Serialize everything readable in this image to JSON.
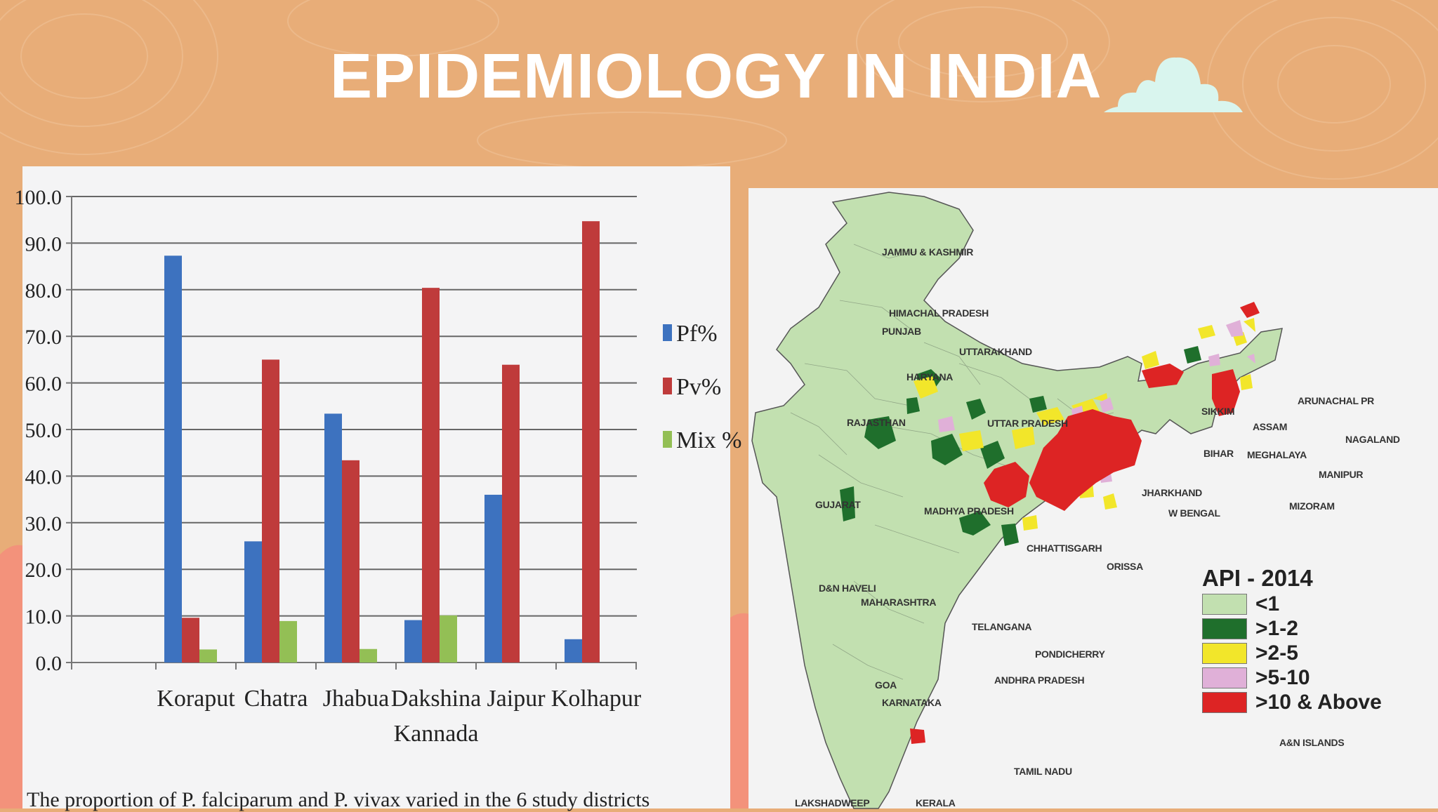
{
  "slide": {
    "title": "EPIDEMIOLOGY IN INDIA"
  },
  "colors": {
    "background": "#e8ad78",
    "salmon": "#f3927b",
    "cloud": "#d9f5ee",
    "pf": "#3d72bf",
    "pv": "#bf3b3b",
    "mix": "#93bf55"
  },
  "chart_data": {
    "type": "bar",
    "categories": [
      "Koraput",
      "Chatra",
      "Jhabua",
      "Dakshina\nKannada",
      "Jaipur",
      "Kolhapur"
    ],
    "series": [
      {
        "name": "Pf%",
        "values": [
          87.3,
          26.0,
          53.4,
          9.1,
          36.0,
          5.0
        ]
      },
      {
        "name": "Pv%",
        "values": [
          9.6,
          65.0,
          43.4,
          80.4,
          63.9,
          94.7
        ]
      },
      {
        "name": "Mix %",
        "values": [
          2.8,
          8.9,
          2.9,
          10.1,
          0,
          0
        ]
      }
    ],
    "ylim": [
      0,
      100
    ],
    "yticks": [
      "0.0",
      "10.0",
      "20.0",
      "30.0",
      "40.0",
      "50.0",
      "60.0",
      "70.0",
      "80.0",
      "90.0",
      "100.0"
    ],
    "grid": true,
    "legend_position": "right",
    "caption": "The proportion of P. falciparum and P. vivax varied in the 6 study districts"
  },
  "map": {
    "legend_title": "API - 2014",
    "legend": [
      {
        "label": "<1",
        "color": "#c2e0b0"
      },
      {
        "label": ">1-2",
        "color": "#1f6f2c"
      },
      {
        "label": ">2-5",
        "color": "#f2e62a"
      },
      {
        "label": ">5-10",
        "color": "#e0b0d8"
      },
      {
        "label": ">10 & Above",
        "color": "#dd2424"
      }
    ],
    "labels": [
      "JAMMU & KASHMIR",
      "HIMACHAL PRADESH",
      "PUNJAB",
      "UTTARAKHAND",
      "HARYANA",
      "RAJASTHAN",
      "UTTAR PRADESH",
      "SIKKIM",
      "ARUNACHAL PR",
      "ASSAM",
      "NAGALAND",
      "MEGHALAYA",
      "BIHAR",
      "MANIPUR",
      "MIZORAM",
      "JHARKHAND",
      "W BENGAL",
      "GUJARAT",
      "MADHYA PRADESH",
      "CHHATTISGARH",
      "ORISSA",
      "D&N HAVELI",
      "MAHARASHTRA",
      "TELANGANA",
      "PONDICHERRY",
      "ANDHRA PRADESH",
      "GOA",
      "KARNATAKA",
      "TAMIL NADU",
      "LAKSHADWEEP",
      "KERALA",
      "A&N ISLANDS"
    ]
  }
}
